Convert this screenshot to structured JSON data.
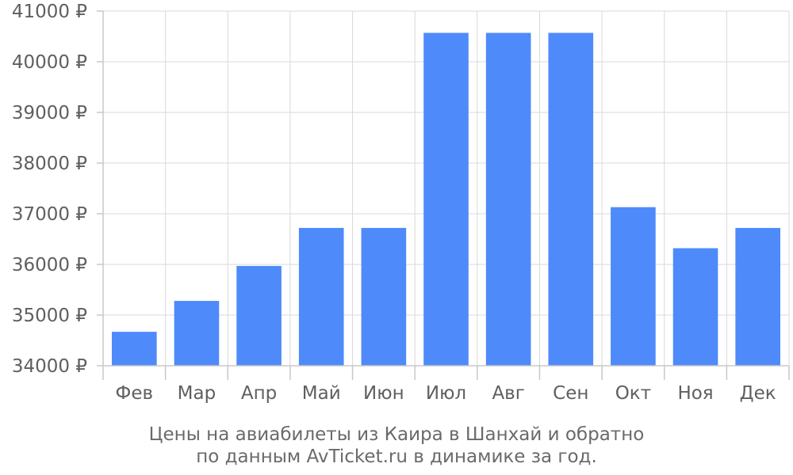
{
  "chart_data": {
    "type": "bar",
    "categories": [
      "Фев",
      "Мар",
      "Апр",
      "Май",
      "Июн",
      "Июл",
      "Авг",
      "Сен",
      "Окт",
      "Ноя",
      "Дек"
    ],
    "values": [
      34670,
      35280,
      35970,
      36720,
      36720,
      40570,
      40570,
      40570,
      37130,
      36320,
      36720
    ],
    "ylim": [
      34000,
      41000
    ],
    "yticks": [
      34000,
      35000,
      36000,
      37000,
      38000,
      39000,
      40000,
      41000
    ],
    "currency": "₽",
    "bar_color": "#4e8afa",
    "grid": true,
    "legend": "none"
  },
  "caption": {
    "line1": "Цены на авиабилеты из Каира в Шанхай и обратно",
    "line2": "по данным AvTicket.ru в динамике за год."
  }
}
